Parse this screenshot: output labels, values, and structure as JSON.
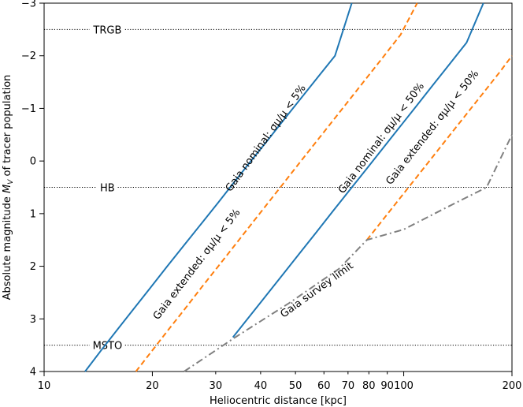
{
  "chart_data": {
    "type": "line",
    "title": "",
    "xlabel": "Heliocentric distance [kpc]",
    "ylabel": "Absolute magnitude M_V of tracer population",
    "x_scale": "log",
    "xlim": [
      10,
      200
    ],
    "ylim": [
      4,
      -3
    ],
    "y_inverted": true,
    "grid": false,
    "legend": "none",
    "x_ticks": [
      {
        "value": 10,
        "label": "10",
        "major": true
      },
      {
        "value": 20,
        "label": "20",
        "major": true
      },
      {
        "value": 30,
        "label": "30",
        "major": false
      },
      {
        "value": 40,
        "label": "40",
        "major": false
      },
      {
        "value": 50,
        "label": "50",
        "major": false
      },
      {
        "value": 60,
        "label": "60",
        "major": false
      },
      {
        "value": 70,
        "label": "70",
        "major": false
      },
      {
        "value": 80,
        "label": "80",
        "major": false
      },
      {
        "value": 90,
        "label": "90",
        "major": false
      },
      {
        "value": 100,
        "label": "100",
        "major": true
      },
      {
        "value": 200,
        "label": "200",
        "major": true
      }
    ],
    "y_ticks": [
      {
        "value": -3,
        "label": "−3"
      },
      {
        "value": -2,
        "label": "−2"
      },
      {
        "value": -1,
        "label": "−1"
      },
      {
        "value": 0,
        "label": "0"
      },
      {
        "value": 1,
        "label": "1"
      },
      {
        "value": 2,
        "label": "2"
      },
      {
        "value": 3,
        "label": "3"
      },
      {
        "value": 4,
        "label": "4"
      }
    ],
    "reference_lines": [
      {
        "label": "TRGB",
        "y": -2.5,
        "label_x": 15
      },
      {
        "label": "HB",
        "y": 0.5,
        "label_x": 15
      },
      {
        "label": "MSTO",
        "y": 3.5,
        "label_x": 15
      }
    ],
    "series": [
      {
        "label": "Gaia nominal: σμ/μ < 5%",
        "style": "solid",
        "color": "#1f77b4",
        "x": [
          13.0,
          14.4,
          16.0,
          17.8,
          19.8,
          22.0,
          24.5,
          27.3,
          30.4,
          33.8,
          37.6,
          41.9,
          46.6,
          51.9,
          57.8,
          64.4,
          71.7
        ],
        "y": [
          4.0,
          3.6,
          3.2,
          2.8,
          2.4,
          2.0,
          1.6,
          1.2,
          0.8,
          0.4,
          0.0,
          -0.4,
          -0.8,
          -1.2,
          -1.6,
          -2.0,
          -3.0
        ],
        "label_at": {
          "x": 42,
          "y": -0.4
        }
      },
      {
        "label": "Gaia extended: σμ/μ < 5%",
        "style": "dashed",
        "color": "#ff7f0e",
        "x": [
          18.0,
          20.0,
          22.2,
          24.7,
          27.4,
          30.5,
          33.9,
          37.7,
          41.9,
          46.6,
          51.8,
          57.6,
          64.1,
          71.3,
          79.3,
          88.2,
          98.0,
          109.0
        ],
        "y": [
          4.0,
          3.6,
          3.2,
          2.8,
          2.4,
          2.0,
          1.6,
          1.2,
          0.8,
          0.4,
          0.0,
          -0.4,
          -0.8,
          -1.2,
          -1.6,
          -2.0,
          -2.4,
          -3.0
        ],
        "label_at": {
          "x": 27,
          "y": 2.0
        }
      },
      {
        "label": "Gaia nominal: σμ/μ < 50%",
        "style": "solid",
        "color": "#1f77b4",
        "x": [
          33.5,
          37.3,
          41.5,
          46.2,
          51.4,
          57.2,
          63.6,
          70.8,
          78.8,
          87.7,
          97.6,
          108.6,
          120.8,
          134.4,
          149.6,
          166.5
        ],
        "y": [
          3.35,
          2.95,
          2.55,
          2.15,
          1.75,
          1.35,
          0.95,
          0.55,
          0.15,
          -0.25,
          -0.65,
          -1.05,
          -1.45,
          -1.85,
          -2.25,
          -3.0
        ],
        "label_at": {
          "x": 88,
          "y": -0.4
        }
      },
      {
        "label": "Gaia extended: σμ/μ < 50%",
        "style": "dashed",
        "color": "#ff7f0e",
        "x": [
          79.0,
          87.9,
          97.8,
          108.8,
          121.0,
          134.6,
          149.8,
          166.7,
          185.4,
          200.0
        ],
        "y": [
          1.5,
          1.1,
          0.7,
          0.3,
          -0.1,
          -0.5,
          -0.9,
          -1.3,
          -1.7,
          -2.0
        ],
        "label_at": {
          "x": 122,
          "y": -0.6
        }
      },
      {
        "label": "Gaia survey limit",
        "style": "dashdot",
        "color": "#808080",
        "x": [
          24.5,
          34.0,
          48.0,
          66.0,
          79.0,
          100.0,
          130.0,
          170.0,
          200.0
        ],
        "y": [
          4.0,
          3.35,
          2.7,
          2.05,
          1.5,
          1.3,
          0.9,
          0.5,
          -0.5
        ],
        "label_at": {
          "x": 58,
          "y": 2.5
        }
      }
    ]
  },
  "colors": {
    "solid_blue": "#1f77b4",
    "dashed_orange": "#ff7f0e",
    "dashdot_gray": "#808080",
    "reference": "#000000"
  }
}
